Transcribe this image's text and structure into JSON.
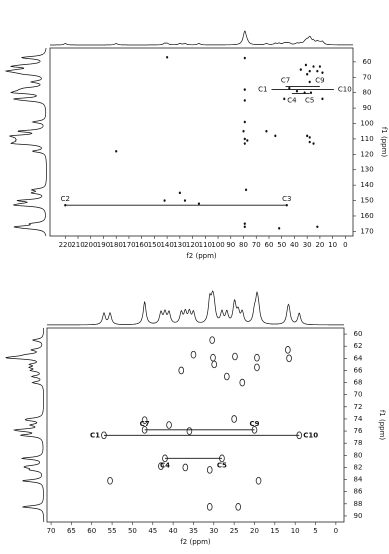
{
  "chart_data": [
    {
      "type": "scatter",
      "marker": "dot",
      "x_label": "f2 (ppm)",
      "y_label": "f1 (ppm)",
      "xlim": [
        232,
        -6
      ],
      "ylim": [
        51,
        173
      ],
      "xticks": [
        220,
        210,
        200,
        190,
        180,
        170,
        160,
        150,
        140,
        130,
        120,
        110,
        100,
        90,
        80,
        70,
        60,
        50,
        40,
        30,
        20,
        10,
        0
      ],
      "yticks": [
        60,
        70,
        80,
        90,
        100,
        110,
        120,
        130,
        140,
        150,
        160,
        170
      ],
      "peaks": {
        "x": [
          79,
          79,
          79,
          79,
          79,
          77,
          80,
          79,
          78,
          79,
          79,
          31,
          25,
          20,
          28,
          35,
          22,
          30,
          18,
          28,
          44,
          38,
          32,
          27,
          48,
          18,
          30,
          28,
          25,
          55,
          62,
          28,
          140,
          180,
          142,
          130,
          115,
          126,
          22,
          52,
          220,
          46
        ],
        "y": [
          57.5,
          78,
          85,
          110,
          113,
          111,
          105,
          99,
          143,
          165,
          167,
          62,
          63,
          63,
          66,
          65,
          66,
          68,
          67,
          73,
          77,
          79,
          80,
          80,
          84,
          84,
          108,
          112,
          113,
          108,
          105,
          109,
          57,
          118,
          150,
          145,
          152,
          150,
          167,
          168,
          153,
          153
        ]
      },
      "correlations": [
        {
          "labels": [
            "C2",
            "C3"
          ],
          "x": [
            220,
            46
          ],
          "y": 153,
          "placement": "above"
        },
        {
          "labels": [
            "C7",
            "C9"
          ],
          "x": [
            47,
            20
          ],
          "y": 76,
          "placement": "above"
        },
        {
          "labels": [
            "C1",
            "C10"
          ],
          "x": [
            58,
            9
          ],
          "y": 78,
          "placement": "sides"
        },
        {
          "labels": [
            "C4",
            "C5"
          ],
          "x": [
            42,
            28
          ],
          "y": 80.5,
          "placement": "below"
        }
      ]
    },
    {
      "type": "scatter",
      "marker": "contour",
      "x_label": "f2 (ppm)",
      "y_label": "f1 (ppm)",
      "xlim": [
        71,
        -2
      ],
      "ylim": [
        59,
        91
      ],
      "xticks": [
        70,
        65,
        60,
        55,
        50,
        45,
        40,
        35,
        30,
        25,
        20,
        15,
        10,
        5,
        0
      ],
      "yticks": [
        60,
        62,
        64,
        66,
        68,
        70,
        72,
        74,
        76,
        78,
        80,
        82,
        84,
        86,
        88,
        90
      ],
      "peaks": {
        "x": [
          35,
          30.4,
          30.2,
          29.9,
          24.8,
          19.4,
          19.4,
          11.8,
          11.5,
          26.8,
          38,
          23,
          57,
          9,
          47,
          20,
          42,
          28,
          43,
          37,
          55.5,
          19,
          47,
          41,
          36,
          25,
          31,
          31,
          24
        ],
        "y": [
          63.4,
          61,
          63.9,
          65,
          63.7,
          63.9,
          65.5,
          62.6,
          64,
          67,
          66,
          68,
          76.7,
          76.7,
          75.8,
          75.8,
          80.5,
          80.5,
          81.8,
          82,
          84.2,
          84.2,
          74.2,
          75,
          76,
          74,
          82.4,
          88.5,
          88.5
        ]
      },
      "correlations": [
        {
          "labels": [
            "C7",
            "C9"
          ],
          "x": [
            47,
            20
          ],
          "y": 75.8,
          "placement": "above"
        },
        {
          "labels": [
            "C1",
            "C10"
          ],
          "x": [
            57,
            9
          ],
          "y": 76.7,
          "placement": "sides"
        },
        {
          "labels": [
            "C4",
            "C5"
          ],
          "x": [
            42,
            28
          ],
          "y": 80.5,
          "placement": "below"
        }
      ]
    }
  ]
}
